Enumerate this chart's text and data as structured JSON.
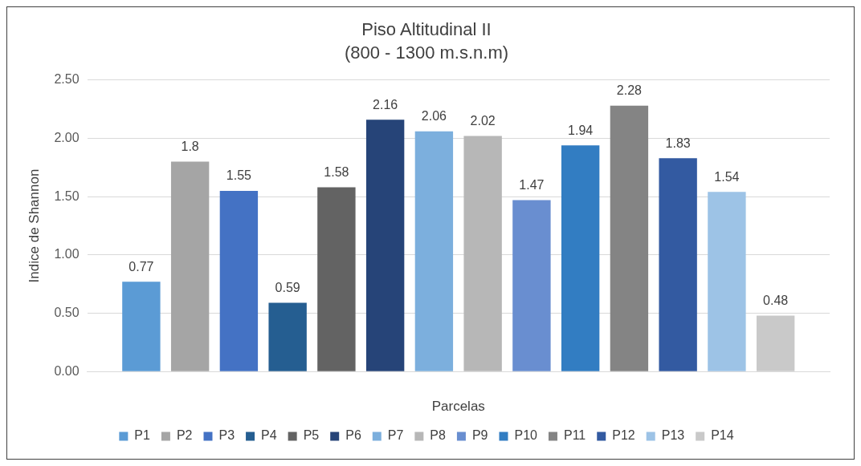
{
  "chart_data": {
    "type": "bar",
    "title": "Piso Altitudinal II",
    "subtitle": "(800 - 1300 m.s.n.m)",
    "xlabel": "Parcelas",
    "ylabel": "Indice de Shannon",
    "categories": [
      null
    ],
    "series": [
      {
        "name": "P1",
        "color": "#5b9bd5",
        "values": [
          0.77
        ]
      },
      {
        "name": "P2",
        "color": "#a5a5a5",
        "values": [
          1.8
        ]
      },
      {
        "name": "P3",
        "color": "#4472c4",
        "values": [
          1.55
        ]
      },
      {
        "name": "P4",
        "color": "#255e91",
        "values": [
          0.59
        ]
      },
      {
        "name": "P5",
        "color": "#636363",
        "values": [
          1.58
        ]
      },
      {
        "name": "P6",
        "color": "#264478",
        "values": [
          2.16
        ]
      },
      {
        "name": "P7",
        "color": "#7cafdd",
        "values": [
          2.06
        ]
      },
      {
        "name": "P8",
        "color": "#b7b7b7",
        "values": [
          2.02
        ]
      },
      {
        "name": "P9",
        "color": "#698ed0",
        "values": [
          1.47
        ]
      },
      {
        "name": "P10",
        "color": "#327dc2",
        "values": [
          1.94
        ]
      },
      {
        "name": "P11",
        "color": "#848484",
        "values": [
          2.28
        ]
      },
      {
        "name": "P12",
        "color": "#335aa1",
        "values": [
          1.83
        ]
      },
      {
        "name": "P13",
        "color": "#9dc3e6",
        "values": [
          1.54
        ]
      },
      {
        "name": "P14",
        "color": "#c9c9c9",
        "values": [
          0.48
        ]
      }
    ],
    "ylim": [
      0,
      2.5
    ],
    "yticks": [
      {
        "value": 0,
        "label": "0.00"
      },
      {
        "value": 0.5,
        "label": "0.50"
      },
      {
        "value": 1,
        "label": "1.00"
      },
      {
        "value": 1.5,
        "label": "1.50"
      },
      {
        "value": 2,
        "label": "2.00"
      },
      {
        "value": 2.5,
        "label": "2.50"
      }
    ],
    "grid": "y",
    "legend": "bottom",
    "data_labels": true
  }
}
